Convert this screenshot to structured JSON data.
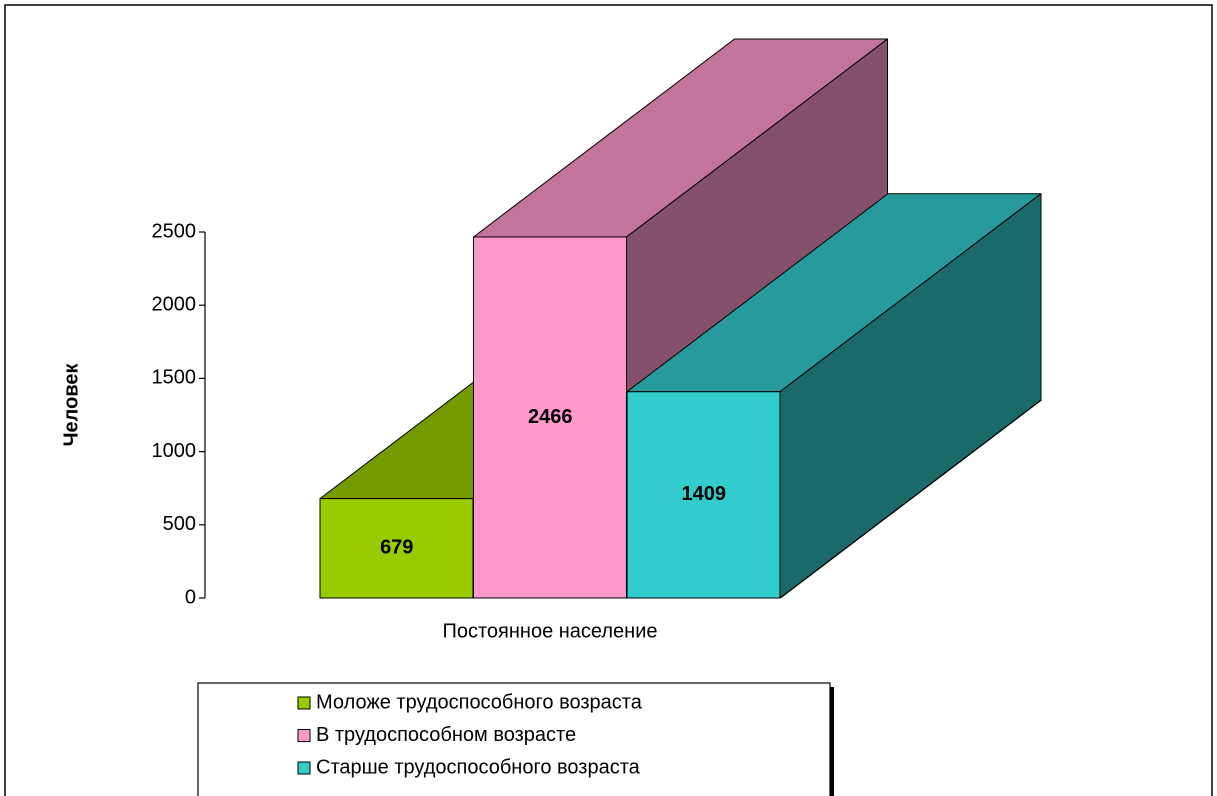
{
  "chart_data": {
    "type": "bar3d",
    "categories": [
      "Постоянное население"
    ],
    "y_label": "Человек",
    "series": [
      {
        "name": "Моложе трудоспособного возраста",
        "color": "#99cc00",
        "values": [
          679
        ]
      },
      {
        "name": "В трудоспособном возрасте",
        "color": "#ff99cc",
        "values": [
          2466
        ]
      },
      {
        "name": "Старше трудоспособного возраста",
        "color": "#33cccc",
        "values": [
          1409
        ]
      }
    ],
    "ylim": [
      0,
      2500
    ],
    "yticks": [
      0,
      500,
      1000,
      1500,
      2000,
      2500
    ],
    "legend": "bottom"
  }
}
